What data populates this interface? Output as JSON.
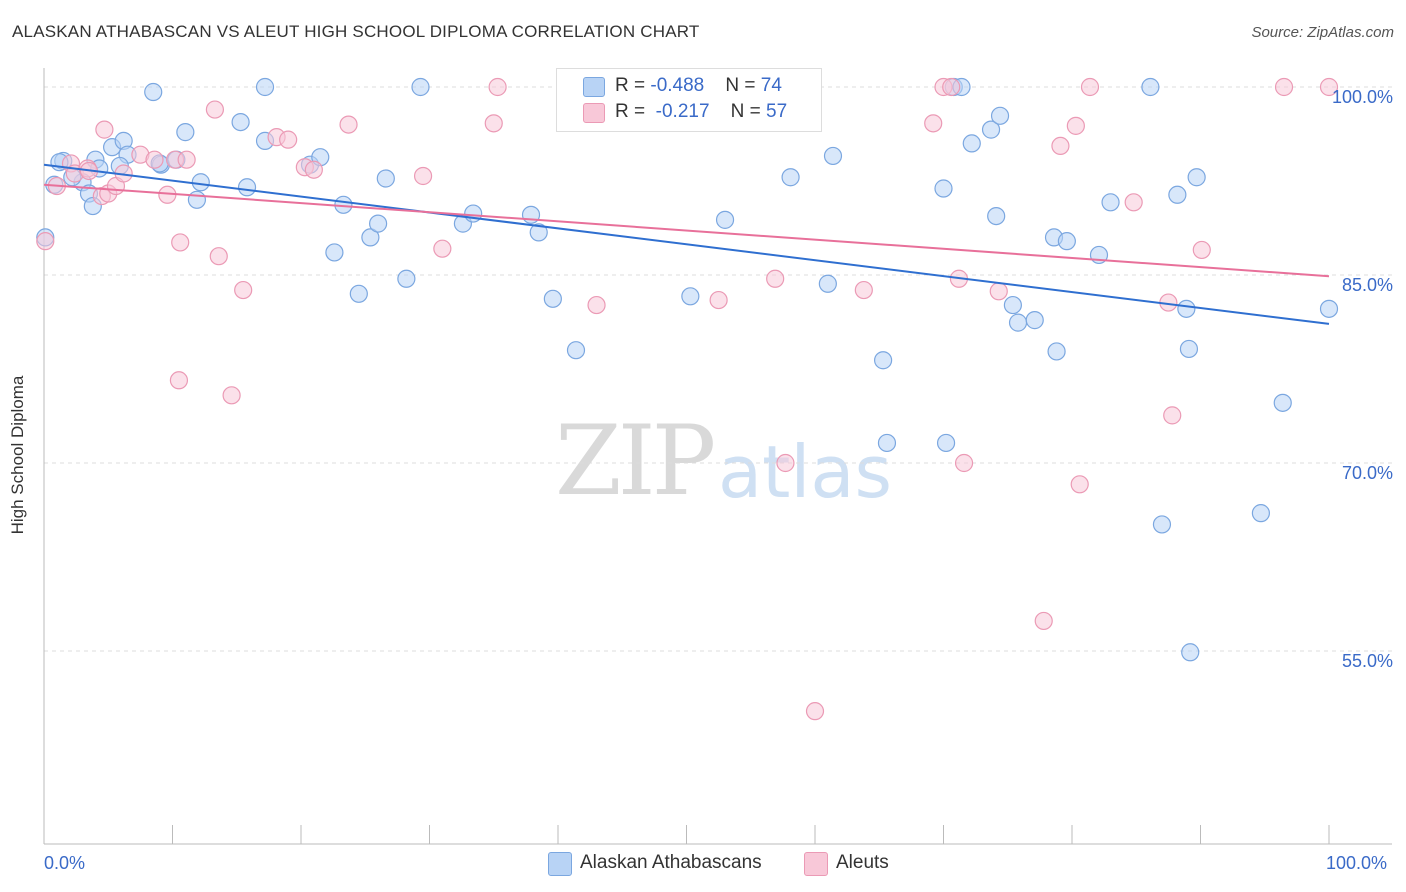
{
  "title": "ALASKAN ATHABASCAN VS ALEUT HIGH SCHOOL DIPLOMA CORRELATION CHART",
  "source": "Source: ZipAtlas.com",
  "watermark": {
    "zip": "ZIP",
    "atlas": "atlas"
  },
  "legend_top": {
    "rows": [
      {
        "r_label": "R = ",
        "r_value": "-0.488",
        "n_label": "N = ",
        "n_value": "74"
      },
      {
        "r_label": "R = ",
        "r_value": "-0.217",
        "n_label": "N = ",
        "n_value": "57"
      }
    ]
  },
  "legend_bottom": [
    "Alaskan Athabascans",
    "Aleuts"
  ],
  "colors": {
    "blue_fill": "#b8d3f5",
    "blue_stroke": "#7ba7e0",
    "blue_line": "#2f6fd0",
    "pink_fill": "#f8c8d8",
    "pink_stroke": "#eb9ab5",
    "pink_line": "#e8709a",
    "grid": "#dcdcdc",
    "axis_text": "#3a6ac8"
  },
  "chart_data": {
    "type": "scatter",
    "title": "ALASKAN ATHABASCAN VS ALEUT HIGH SCHOOL DIPLOMA CORRELATION CHART",
    "xlabel": "",
    "ylabel": "High School Diploma",
    "xlim": [
      0,
      100
    ],
    "ylim": [
      40,
      101.5
    ],
    "x_tick_labels": [
      "0.0%",
      "100.0%"
    ],
    "y_tick_labels": [
      "100.0%",
      "85.0%",
      "70.0%",
      "55.0%"
    ],
    "y_ticks": [
      100,
      85,
      70,
      55
    ],
    "grid": true,
    "legend_position": "top-center",
    "series": [
      {
        "name": "Alaskan Athabascans",
        "color": "#b8d3f5",
        "trend": {
          "x": [
            0,
            100
          ],
          "y": [
            93.8,
            81.1
          ]
        },
        "points": [
          [
            1.5,
            94.1
          ],
          [
            0.8,
            92.2
          ],
          [
            3.0,
            92.4
          ],
          [
            4.0,
            94.2
          ],
          [
            4.3,
            93.5
          ],
          [
            3.5,
            91.5
          ],
          [
            3.8,
            90.5
          ],
          [
            5.3,
            95.2
          ],
          [
            6.2,
            95.7
          ],
          [
            6.5,
            94.6
          ],
          [
            5.9,
            93.7
          ],
          [
            9.1,
            93.8
          ],
          [
            9.0,
            93.9
          ],
          [
            10.3,
            94.2
          ],
          [
            11.0,
            96.4
          ],
          [
            8.5,
            99.6
          ],
          [
            12.2,
            92.4
          ],
          [
            11.9,
            91.0
          ],
          [
            15.3,
            97.2
          ],
          [
            15.8,
            92.0
          ],
          [
            17.2,
            95.7
          ],
          [
            20.7,
            93.8
          ],
          [
            21.5,
            94.4
          ],
          [
            23.3,
            90.6
          ],
          [
            26.6,
            92.7
          ],
          [
            24.5,
            83.5
          ],
          [
            17.2,
            100.0
          ],
          [
            29.3,
            100.0
          ],
          [
            32.6,
            89.1
          ],
          [
            33.4,
            89.9
          ],
          [
            25.4,
            88.0
          ],
          [
            22.6,
            86.8
          ],
          [
            26.0,
            89.1
          ],
          [
            28.2,
            84.7
          ],
          [
            37.9,
            89.8
          ],
          [
            38.5,
            88.4
          ],
          [
            39.6,
            83.1
          ],
          [
            41.4,
            79.0
          ],
          [
            50.3,
            83.3
          ],
          [
            53.0,
            89.4
          ],
          [
            58.1,
            92.8
          ],
          [
            61.4,
            94.5
          ],
          [
            61.0,
            84.3
          ],
          [
            65.3,
            78.2
          ],
          [
            65.6,
            71.6
          ],
          [
            70.2,
            71.6
          ],
          [
            70.8,
            100.0
          ],
          [
            71.4,
            100.0
          ],
          [
            70.0,
            91.9
          ],
          [
            72.2,
            95.5
          ],
          [
            73.7,
            96.6
          ],
          [
            74.4,
            97.7
          ],
          [
            74.1,
            89.7
          ],
          [
            75.4,
            82.6
          ],
          [
            75.8,
            81.2
          ],
          [
            77.1,
            81.4
          ],
          [
            78.6,
            88.0
          ],
          [
            78.8,
            78.9
          ],
          [
            79.6,
            87.7
          ],
          [
            82.1,
            86.6
          ],
          [
            83.0,
            90.8
          ],
          [
            86.1,
            100.0
          ],
          [
            88.2,
            91.4
          ],
          [
            89.7,
            92.8
          ],
          [
            88.9,
            82.3
          ],
          [
            89.1,
            79.1
          ],
          [
            87.0,
            65.1
          ],
          [
            89.2,
            54.9
          ],
          [
            94.7,
            66.0
          ],
          [
            96.4,
            74.8
          ],
          [
            100.0,
            82.3
          ],
          [
            1.2,
            94.0
          ],
          [
            2.2,
            92.8
          ],
          [
            0.1,
            88.0
          ]
        ]
      },
      {
        "name": "Aleuts",
        "color": "#f8c8d8",
        "trend": {
          "x": [
            0,
            100
          ],
          "y": [
            92.2,
            84.9
          ]
        },
        "points": [
          [
            0.1,
            87.7
          ],
          [
            1.0,
            92.1
          ],
          [
            2.1,
            93.9
          ],
          [
            2.4,
            93.1
          ],
          [
            3.4,
            93.5
          ],
          [
            4.5,
            91.3
          ],
          [
            4.7,
            96.6
          ],
          [
            5.0,
            91.5
          ],
          [
            5.6,
            92.1
          ],
          [
            6.2,
            93.1
          ],
          [
            7.5,
            94.6
          ],
          [
            9.6,
            91.4
          ],
          [
            10.2,
            94.2
          ],
          [
            11.1,
            94.2
          ],
          [
            10.6,
            87.6
          ],
          [
            10.5,
            76.6
          ],
          [
            13.3,
            98.2
          ],
          [
            13.6,
            86.5
          ],
          [
            14.6,
            75.4
          ],
          [
            15.5,
            83.8
          ],
          [
            18.1,
            96.0
          ],
          [
            19.0,
            95.8
          ],
          [
            20.3,
            93.6
          ],
          [
            21.0,
            93.4
          ],
          [
            23.7,
            97.0
          ],
          [
            29.5,
            92.9
          ],
          [
            31.0,
            87.1
          ],
          [
            35.0,
            97.1
          ],
          [
            35.3,
            100.0
          ],
          [
            43.0,
            82.6
          ],
          [
            47.0,
            100.0
          ],
          [
            49.0,
            100.0
          ],
          [
            52.5,
            83.0
          ],
          [
            56.5,
            100.0
          ],
          [
            56.9,
            84.7
          ],
          [
            57.7,
            70.0
          ],
          [
            60.0,
            50.2
          ],
          [
            63.8,
            83.8
          ],
          [
            69.2,
            97.1
          ],
          [
            70.0,
            100.0
          ],
          [
            70.6,
            100.0
          ],
          [
            71.2,
            84.7
          ],
          [
            71.6,
            70.0
          ],
          [
            74.3,
            83.7
          ],
          [
            77.8,
            57.4
          ],
          [
            79.1,
            95.3
          ],
          [
            80.3,
            96.9
          ],
          [
            80.6,
            68.3
          ],
          [
            81.4,
            100.0
          ],
          [
            84.8,
            90.8
          ],
          [
            87.5,
            82.8
          ],
          [
            87.8,
            73.8
          ],
          [
            90.1,
            87.0
          ],
          [
            96.5,
            100.0
          ],
          [
            100.0,
            100.0
          ],
          [
            3.5,
            93.3
          ],
          [
            8.6,
            94.2
          ]
        ]
      }
    ]
  }
}
